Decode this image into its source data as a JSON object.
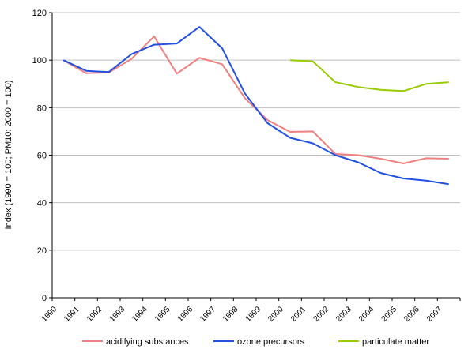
{
  "chart_data": {
    "type": "line",
    "title": "",
    "xlabel": "",
    "ylabel": "Index (1990 = 100; PM10: 2000 = 100)",
    "categories": [
      "1990",
      "1991",
      "1992",
      "1993",
      "1994",
      "1995",
      "1996",
      "1997",
      "1998",
      "1999",
      "2000",
      "2001",
      "2002",
      "2003",
      "2004",
      "2005",
      "2006",
      "2007"
    ],
    "ylim": [
      0,
      120
    ],
    "yticks": [
      0,
      20,
      40,
      60,
      80,
      100,
      120
    ],
    "grid": true,
    "legend_position": "bottom",
    "series": [
      {
        "name": "acidifying substances",
        "color": "#f08080",
        "values": [
          100,
          94.5,
          94.8,
          100.5,
          110,
          94.3,
          101,
          98.3,
          84,
          74.8,
          69.8,
          70,
          60.5,
          60,
          58.5,
          56.5,
          58.7,
          58.5
        ]
      },
      {
        "name": "ozone precursors",
        "color": "#2250e0",
        "values": [
          100,
          95.5,
          95,
          102.5,
          106.5,
          107,
          114,
          105,
          86,
          73.5,
          67.3,
          65,
          60,
          57,
          52.5,
          50.2,
          49.3,
          47.8
        ]
      },
      {
        "name": "particulate matter",
        "color": "#99cc00",
        "values": [
          null,
          null,
          null,
          null,
          null,
          null,
          null,
          null,
          null,
          null,
          100,
          99.5,
          90.7,
          88.7,
          87.5,
          87,
          90,
          90.7
        ]
      }
    ]
  }
}
